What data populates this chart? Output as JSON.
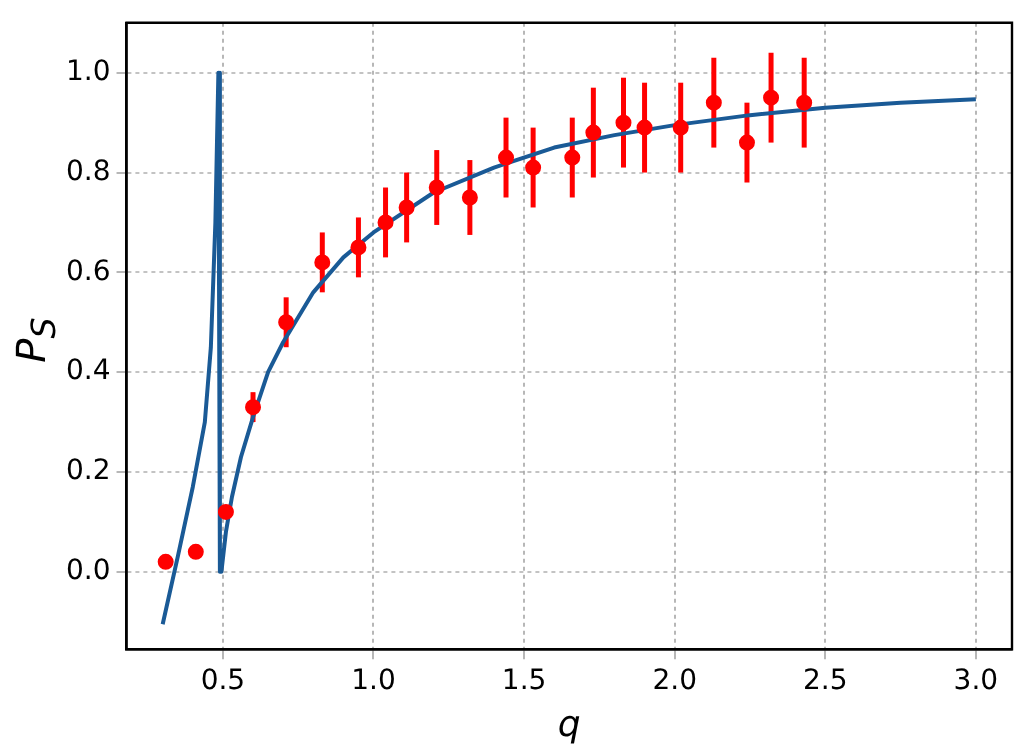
{
  "chart_data": {
    "type": "scatter",
    "xlabel": "q",
    "ylabel": "P$_{S}$",
    "xlim": [
      0.18,
      3.12
    ],
    "ylim": [
      -0.155,
      1.1
    ],
    "xticks": [
      {
        "value": 0.5,
        "label": "0.5"
      },
      {
        "value": 1,
        "label": "1.0"
      },
      {
        "value": 1.5,
        "label": "1.5"
      },
      {
        "value": 2,
        "label": "2.0"
      },
      {
        "value": 2.5,
        "label": "2.5"
      },
      {
        "value": 3,
        "label": "3.0"
      }
    ],
    "yticks": [
      {
        "value": 0,
        "label": "0.0"
      },
      {
        "value": 0.2,
        "label": "0.2"
      },
      {
        "value": 0.4,
        "label": "0.4"
      },
      {
        "value": 0.6,
        "label": "0.6"
      },
      {
        "value": 0.8,
        "label": "0.8"
      },
      {
        "value": 1,
        "label": "1.0"
      }
    ],
    "grid": true,
    "series": [
      {
        "type": "line",
        "color": "#1a5a96",
        "marker": "none",
        "line_style": "solid",
        "x": [
          0.3,
          0.35,
          0.4,
          0.44,
          0.46,
          0.475,
          0.485,
          0.49,
          0.495,
          0.51,
          0.53,
          0.56,
          0.6,
          0.65,
          0.7,
          0.8,
          0.9,
          1.0,
          1.2,
          1.4,
          1.6,
          1.8,
          2.0,
          2.25,
          2.5,
          2.75,
          3.0
        ],
        "values": [
          -0.105,
          0.03,
          0.17,
          0.3,
          0.45,
          0.7,
          1.0,
          0.0,
          0.0,
          0.08,
          0.15,
          0.23,
          0.31,
          0.4,
          0.46,
          0.56,
          0.63,
          0.68,
          0.76,
          0.81,
          0.85,
          0.875,
          0.895,
          0.915,
          0.93,
          0.94,
          0.947
        ]
      },
      {
        "type": "scatter",
        "color": "#ff0000",
        "marker": "circle",
        "x": [
          0.31,
          0.41,
          0.51,
          0.6,
          0.71,
          0.83,
          0.95,
          1.04,
          1.11,
          1.21,
          1.32,
          1.44,
          1.53,
          1.66,
          1.73,
          1.83,
          1.9,
          2.02,
          2.13,
          2.24,
          2.32,
          2.43
        ],
        "values": [
          0.02,
          0.04,
          0.12,
          0.33,
          0.5,
          0.62,
          0.65,
          0.7,
          0.73,
          0.77,
          0.75,
          0.83,
          0.81,
          0.83,
          0.88,
          0.9,
          0.89,
          0.89,
          0.94,
          0.86,
          0.95,
          0.94
        ],
        "errors": [
          null,
          null,
          null,
          0.03,
          0.05,
          0.06,
          0.06,
          0.07,
          0.07,
          0.075,
          0.075,
          0.08,
          0.08,
          0.08,
          0.09,
          0.09,
          0.09,
          0.09,
          0.09,
          0.08,
          0.09,
          0.09
        ]
      }
    ]
  }
}
